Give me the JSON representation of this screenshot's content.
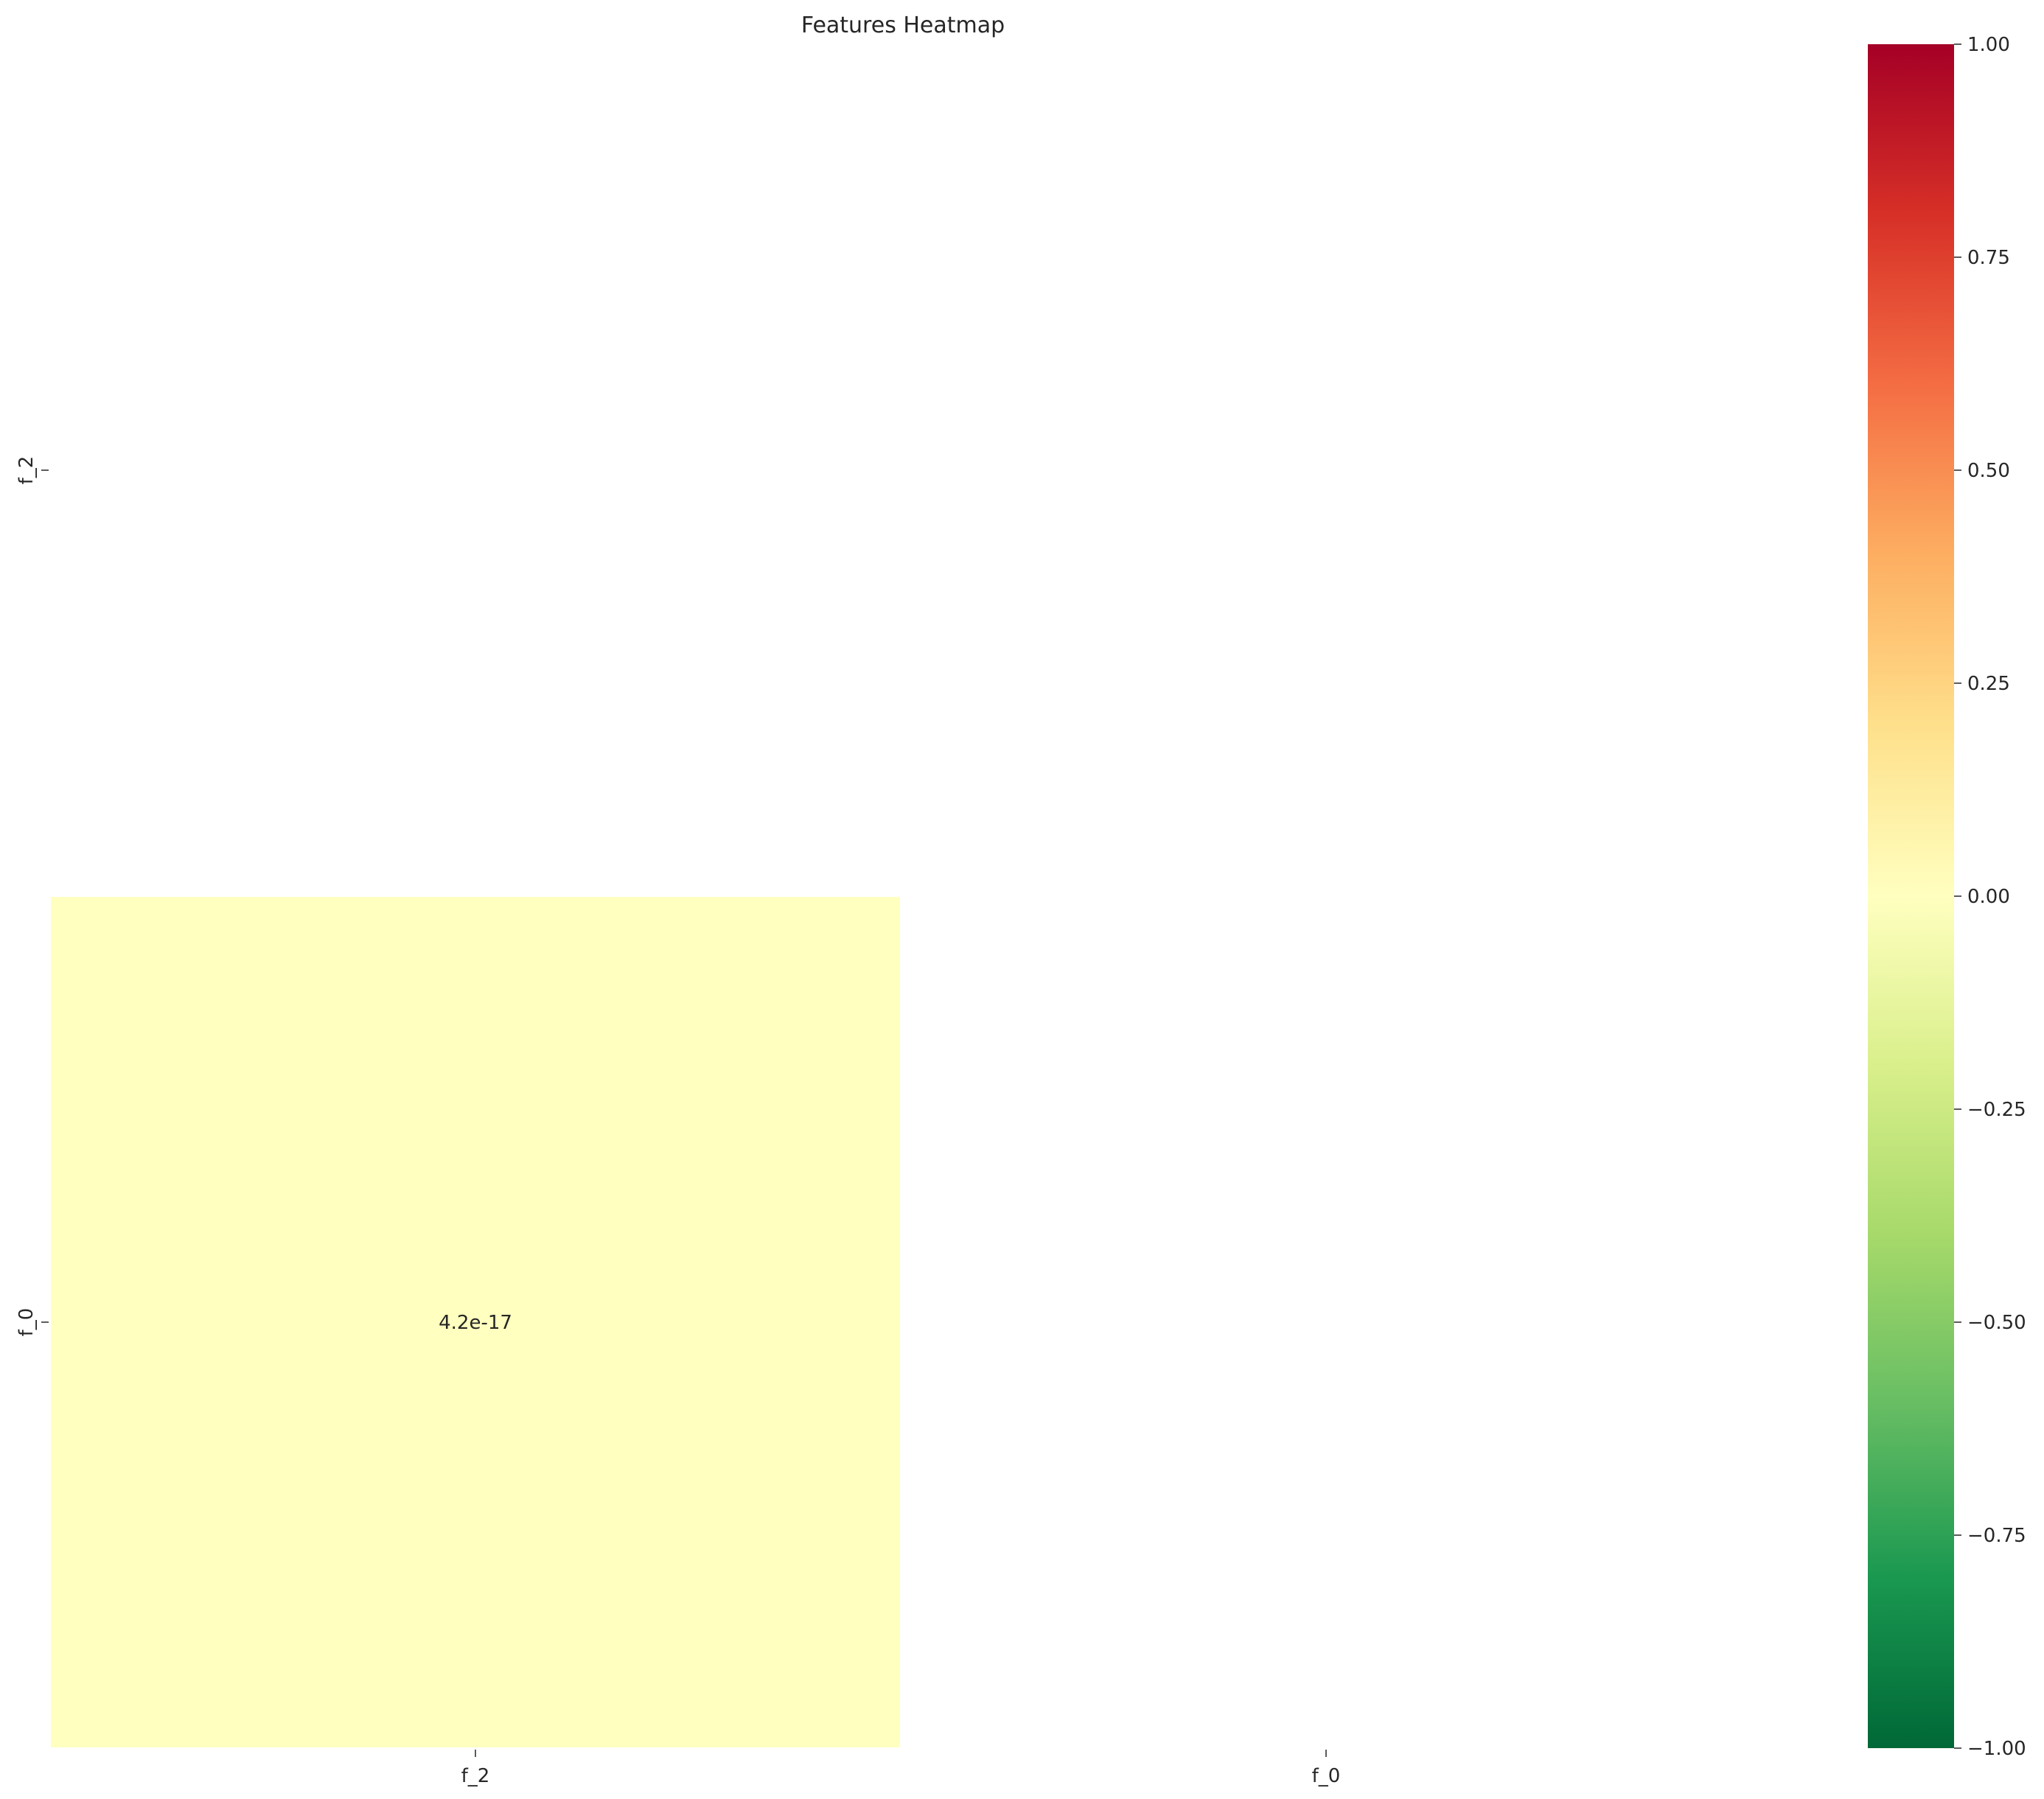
{
  "chart_data": {
    "type": "heatmap",
    "title": "Features Heatmap",
    "x_labels": [
      "f_2",
      "f_0"
    ],
    "y_labels": [
      "f_2",
      "f_0"
    ],
    "matrix": [
      [
        null,
        null
      ],
      [
        4.2e-17,
        null
      ]
    ],
    "annotations": [
      [
        null,
        null
      ],
      [
        "4.2e-17",
        null
      ]
    ],
    "mask": "upper-triangle-including-diagonal",
    "colormap": "RdYlGn_r",
    "colormap_stops": [
      "#006837",
      "#1a9850",
      "#66bd63",
      "#a6d96a",
      "#d9ef8b",
      "#ffffbf",
      "#fee08b",
      "#fdae61",
      "#f46d43",
      "#d73027",
      "#a50026"
    ],
    "vmin": -1.0,
    "vmax": 1.0,
    "colorbar": {
      "ticks": [
        1.0,
        0.75,
        0.5,
        0.25,
        0.0,
        -0.25,
        -0.5,
        -0.75,
        -1.0
      ],
      "tick_labels": [
        "1.00",
        "0.75",
        "0.50",
        "0.25",
        "0.00",
        "−0.25",
        "−0.50",
        "−0.75",
        "−1.00"
      ]
    },
    "grid": false,
    "xlabel": "",
    "ylabel": ""
  }
}
